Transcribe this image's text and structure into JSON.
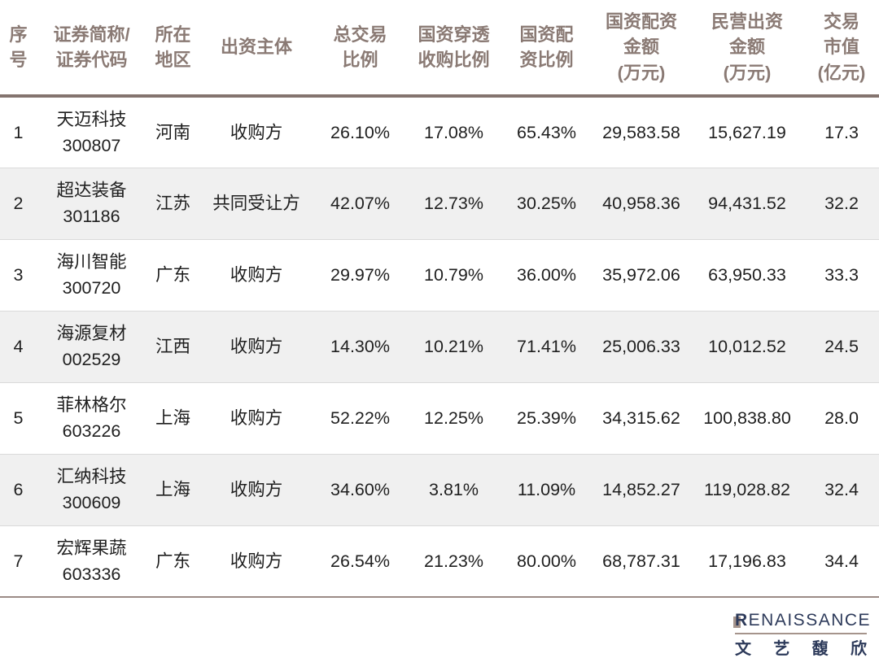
{
  "table": {
    "headers": [
      {
        "id": "index",
        "lines": [
          "序",
          "号"
        ]
      },
      {
        "id": "security",
        "lines": [
          "证券简称/",
          "证券代码"
        ]
      },
      {
        "id": "region",
        "lines": [
          "所在",
          "地区"
        ]
      },
      {
        "id": "entity",
        "lines": [
          "出资主体"
        ]
      },
      {
        "id": "total_ratio",
        "lines": [
          "总交易",
          "比例"
        ]
      },
      {
        "id": "penetration_ratio",
        "lines": [
          "国资穿透",
          "收购比例"
        ]
      },
      {
        "id": "allocation_ratio",
        "lines": [
          "国资配",
          "资比例"
        ]
      },
      {
        "id": "state_amount",
        "lines": [
          "国资配资",
          "金额",
          "(万元)"
        ]
      },
      {
        "id": "private_amount",
        "lines": [
          "民营出资",
          "金额",
          "(万元)"
        ]
      },
      {
        "id": "market_cap",
        "lines": [
          "交易",
          "市值",
          "(亿元)"
        ]
      }
    ],
    "rows": [
      {
        "index": "1",
        "name": "天迈科技",
        "code": "300807",
        "region": "河南",
        "entity": "收购方",
        "total_ratio": "26.10%",
        "penetration_ratio": "17.08%",
        "allocation_ratio": "65.43%",
        "state_amount": "29,583.58",
        "private_amount": "15,627.19",
        "market_cap": "17.3"
      },
      {
        "index": "2",
        "name": "超达装备",
        "code": "301186",
        "region": "江苏",
        "entity": "共同受让方",
        "total_ratio": "42.07%",
        "penetration_ratio": "12.73%",
        "allocation_ratio": "30.25%",
        "state_amount": "40,958.36",
        "private_amount": "94,431.52",
        "market_cap": "32.2"
      },
      {
        "index": "3",
        "name": "海川智能",
        "code": "300720",
        "region": "广东",
        "entity": "收购方",
        "total_ratio": "29.97%",
        "penetration_ratio": "10.79%",
        "allocation_ratio": "36.00%",
        "state_amount": "35,972.06",
        "private_amount": "63,950.33",
        "market_cap": "33.3"
      },
      {
        "index": "4",
        "name": "海源复材",
        "code": "002529",
        "region": "江西",
        "entity": "收购方",
        "total_ratio": "14.30%",
        "penetration_ratio": "10.21%",
        "allocation_ratio": "71.41%",
        "state_amount": "25,006.33",
        "private_amount": "10,012.52",
        "market_cap": "24.5"
      },
      {
        "index": "5",
        "name": "菲林格尔",
        "code": "603226",
        "region": "上海",
        "entity": "收购方",
        "total_ratio": "52.22%",
        "penetration_ratio": "12.25%",
        "allocation_ratio": "25.39%",
        "state_amount": "34,315.62",
        "private_amount": "100,838.80",
        "market_cap": "28.0"
      },
      {
        "index": "6",
        "name": "汇纳科技",
        "code": "300609",
        "region": "上海",
        "entity": "收购方",
        "total_ratio": "34.60%",
        "penetration_ratio": "3.81%",
        "allocation_ratio": "11.09%",
        "state_amount": "14,852.27",
        "private_amount": "119,028.82",
        "market_cap": "32.4"
      },
      {
        "index": "7",
        "name": "宏辉果蔬",
        "code": "603336",
        "region": "广东",
        "entity": "收购方",
        "total_ratio": "26.54%",
        "penetration_ratio": "21.23%",
        "allocation_ratio": "80.00%",
        "state_amount": "68,787.31",
        "private_amount": "17,196.83",
        "market_cap": "34.4"
      }
    ]
  },
  "footer": {
    "logo_initial": "R",
    "logo_rest": "ENAISSANCE",
    "logo_chinese": [
      "文",
      "艺",
      "馥",
      "欣"
    ]
  },
  "colors": {
    "header_text": "#8a7a74",
    "header_rule": "#84746f",
    "row_alt_bg": "#f0f0f0",
    "row_divider": "#dadada",
    "bottom_rule": "#9b8b86",
    "body_text": "#1f1f1f",
    "logo_navy": "#2d3a5a",
    "logo_tan": "#a5948c"
  },
  "chart_data": {
    "type": "table",
    "columns": [
      "序号",
      "证券简称/证券代码",
      "所在地区",
      "出资主体",
      "总交易比例",
      "国资穿透收购比例",
      "国资配资比例",
      "国资配资金额(万元)",
      "民营出资金额(万元)",
      "交易市值(亿元)"
    ],
    "rows": [
      [
        "1",
        "天迈科技 300807",
        "河南",
        "收购方",
        "26.10%",
        "17.08%",
        "65.43%",
        "29,583.58",
        "15,627.19",
        "17.3"
      ],
      [
        "2",
        "超达装备 301186",
        "江苏",
        "共同受让方",
        "42.07%",
        "12.73%",
        "30.25%",
        "40,958.36",
        "94,431.52",
        "32.2"
      ],
      [
        "3",
        "海川智能 300720",
        "广东",
        "收购方",
        "29.97%",
        "10.79%",
        "36.00%",
        "35,972.06",
        "63,950.33",
        "33.3"
      ],
      [
        "4",
        "海源复材 002529",
        "江西",
        "收购方",
        "14.30%",
        "10.21%",
        "71.41%",
        "25,006.33",
        "10,012.52",
        "24.5"
      ],
      [
        "5",
        "菲林格尔 603226",
        "上海",
        "收购方",
        "52.22%",
        "12.25%",
        "25.39%",
        "34,315.62",
        "100,838.80",
        "28.0"
      ],
      [
        "6",
        "汇纳科技 300609",
        "上海",
        "收购方",
        "34.60%",
        "3.81%",
        "11.09%",
        "14,852.27",
        "119,028.82",
        "32.4"
      ],
      [
        "7",
        "宏辉果蔬 603336",
        "广东",
        "收购方",
        "26.54%",
        "21.23%",
        "80.00%",
        "68,787.31",
        "17,196.83",
        "34.4"
      ]
    ],
    "legend_position": "none",
    "grid": "horizontal-row-dividers"
  }
}
